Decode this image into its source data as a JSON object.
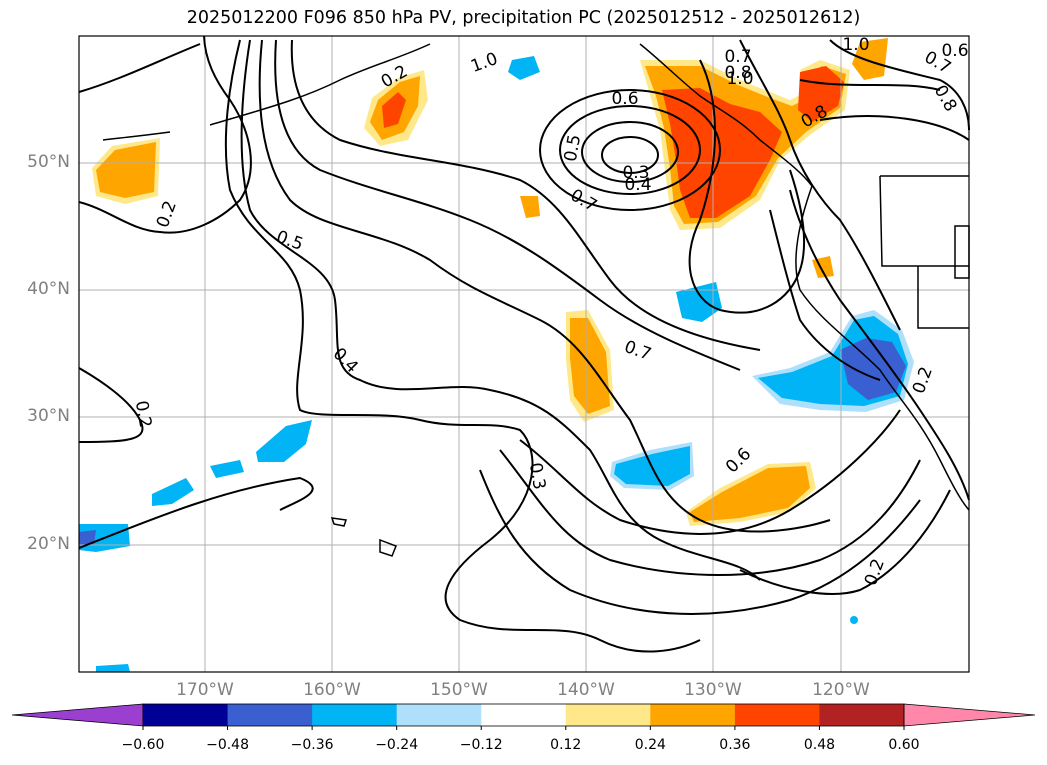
{
  "title": "2025012200 F096 850 hPa PV, precipitation PC (2025012512 - 2025012612)",
  "lat_labels": [
    "50°N",
    "40°N",
    "30°N",
    "20°N"
  ],
  "lon_labels": [
    "170°W",
    "160°W",
    "150°W",
    "140°W",
    "130°W",
    "120°W"
  ],
  "colorbar": {
    "ticks": [
      "−0.60",
      "−0.48",
      "−0.36",
      "−0.24",
      "−0.12",
      "0.12",
      "0.24",
      "0.36",
      "0.48",
      "0.60"
    ],
    "colors": [
      "#9a3fd0",
      "#000096",
      "#3a5fd0",
      "#00b4f5",
      "#aee0fb",
      "#ffffff",
      "#ffe88a",
      "#ffa500",
      "#ff4400",
      "#b22222",
      "#ff88aa"
    ]
  },
  "contour_labels": [
    "0.2",
    "0.2",
    "0.5",
    "0.4",
    "0.3",
    "0.7",
    "0.6",
    "0.2",
    "0.2",
    "1.0",
    "0.7",
    "0.8",
    "1.0",
    "0.6",
    "0.5",
    "0.3",
    "0.4",
    "0.7",
    "0.8",
    "1.0",
    "0.6",
    "0.7",
    "0.8",
    "0.2"
  ],
  "colors": {
    "coast": "#000000",
    "grid": "#b0b0b0",
    "tick_label": "#808080"
  }
}
